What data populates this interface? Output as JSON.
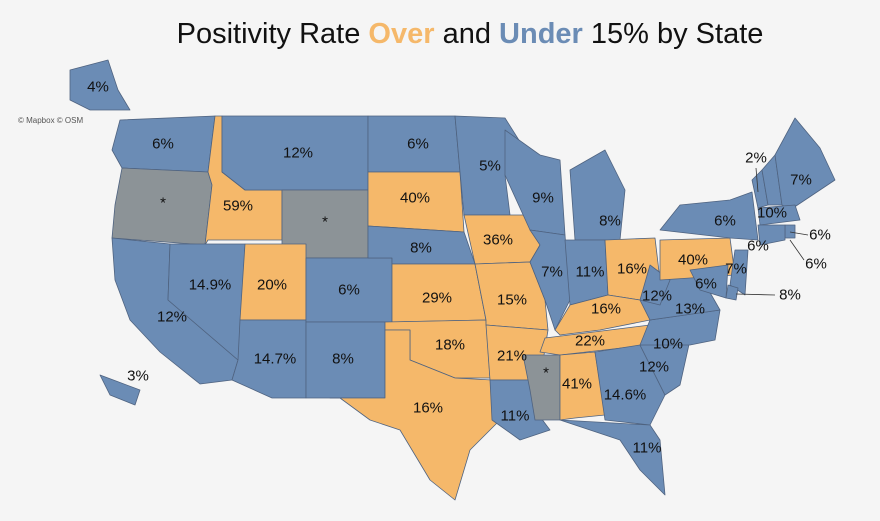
{
  "title": {
    "prefix": "Positivity Rate",
    "over": "Over",
    "mid": "and",
    "under": "Under",
    "suffix": "15% by State"
  },
  "attribution": "© Mapbox © OSM",
  "colors": {
    "over": "#f5b86a",
    "under": "#6b8cb5",
    "no_data": "#8c9397",
    "background": "#f5f5f5"
  },
  "states": [
    {
      "state": "WA",
      "label": "6%",
      "status": "under"
    },
    {
      "state": "OR",
      "label": "*",
      "status": "no_data"
    },
    {
      "state": "CA",
      "label": "12%",
      "status": "under"
    },
    {
      "state": "ID",
      "label": "59%",
      "status": "over"
    },
    {
      "state": "NV",
      "label": "14.9%",
      "status": "under"
    },
    {
      "state": "MT",
      "label": "12%",
      "status": "under"
    },
    {
      "state": "WY",
      "label": "*",
      "status": "no_data"
    },
    {
      "state": "UT",
      "label": "20%",
      "status": "over"
    },
    {
      "state": "AZ",
      "label": "14.7%",
      "status": "under"
    },
    {
      "state": "CO",
      "label": "6%",
      "status": "under"
    },
    {
      "state": "NM",
      "label": "8%",
      "status": "under"
    },
    {
      "state": "ND",
      "label": "6%",
      "status": "under"
    },
    {
      "state": "SD",
      "label": "40%",
      "status": "over"
    },
    {
      "state": "NE",
      "label": "8%",
      "status": "under"
    },
    {
      "state": "KS",
      "label": "29%",
      "status": "over"
    },
    {
      "state": "OK",
      "label": "18%",
      "status": "over"
    },
    {
      "state": "TX",
      "label": "16%",
      "status": "over"
    },
    {
      "state": "MN",
      "label": "5%",
      "status": "under"
    },
    {
      "state": "IA",
      "label": "36%",
      "status": "over"
    },
    {
      "state": "MO",
      "label": "15%",
      "status": "over"
    },
    {
      "state": "AR",
      "label": "21%",
      "status": "over"
    },
    {
      "state": "LA",
      "label": "11%",
      "status": "under"
    },
    {
      "state": "WI",
      "label": "9%",
      "status": "under"
    },
    {
      "state": "IL",
      "label": "7%",
      "status": "under"
    },
    {
      "state": "MI",
      "label": "8%",
      "status": "under"
    },
    {
      "state": "IN",
      "label": "11%",
      "status": "under"
    },
    {
      "state": "OH",
      "label": "16%",
      "status": "over"
    },
    {
      "state": "KY",
      "label": "16%",
      "status": "over"
    },
    {
      "state": "TN",
      "label": "22%",
      "status": "over"
    },
    {
      "state": "MS",
      "label": "*",
      "status": "no_data"
    },
    {
      "state": "AL",
      "label": "41%",
      "status": "over"
    },
    {
      "state": "GA",
      "label": "14.6%",
      "status": "under"
    },
    {
      "state": "FL",
      "label": "11%",
      "status": "under"
    },
    {
      "state": "SC",
      "label": "12%",
      "status": "under"
    },
    {
      "state": "NC",
      "label": "10%",
      "status": "under"
    },
    {
      "state": "VA",
      "label": "13%",
      "status": "under"
    },
    {
      "state": "WV",
      "label": "12%",
      "status": "under"
    },
    {
      "state": "PA",
      "label": "40%",
      "status": "over"
    },
    {
      "state": "NY",
      "label": "6%",
      "status": "under"
    },
    {
      "state": "VT",
      "label": "2%",
      "status": "under"
    },
    {
      "state": "NH",
      "label": "10%",
      "status": "under"
    },
    {
      "state": "ME",
      "label": "7%",
      "status": "under"
    },
    {
      "state": "MA",
      "label": "6%",
      "status": "under"
    },
    {
      "state": "RI",
      "label": "6%",
      "status": "under"
    },
    {
      "state": "CT",
      "label": "6%",
      "status": "under"
    },
    {
      "state": "NJ",
      "label": "7%",
      "status": "under"
    },
    {
      "state": "DE",
      "label": "8%",
      "status": "under"
    },
    {
      "state": "MD",
      "label": "6%",
      "status": "under"
    },
    {
      "state": "AK",
      "label": "4%",
      "status": "under"
    },
    {
      "state": "HI",
      "label": "3%",
      "status": "under"
    }
  ]
}
